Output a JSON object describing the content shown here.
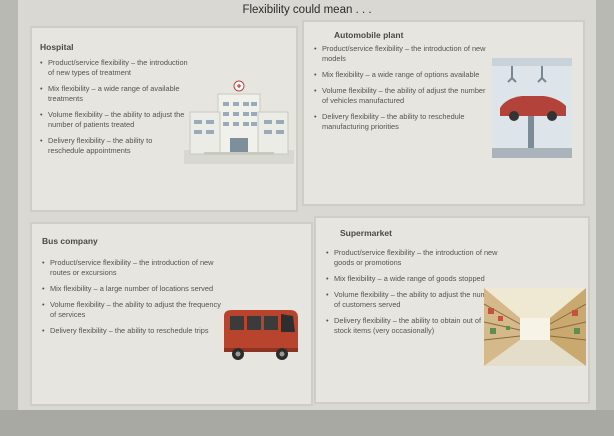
{
  "title": "Flexibility could mean . . .",
  "boxes": {
    "hospital": {
      "heading": "Hospital",
      "items": [
        "Product/service flexibility – the introduction of new types of treatment",
        "Mix flexibility – a wide range of available treatments",
        "Volume flexibility – the ability to adjust the number of patients treated",
        "Delivery flexibility – the ability to reschedule appointments"
      ],
      "illustration": "hospital-building-icon"
    },
    "automobile": {
      "heading": "Automobile plant",
      "items": [
        "Product/service flexibility – the introduction of new models",
        "Mix flexibility – a wide range of options available",
        "Volume flexibility – the ability of adjust the number of vehicles manufactured",
        "Delivery flexibility – the ability to reschedule manufacturing priorities"
      ],
      "illustration": "car-assembly-icon"
    },
    "bus": {
      "heading": "Bus company",
      "items": [
        "Product/service flexibility – the introduction of new routes or excursions",
        "Mix flexibility – a large number of locations served",
        "Volume flexibility – the ability to adjust the frequency of services",
        "Delivery flexibility – the ability to reschedule trips"
      ],
      "illustration": "bus-icon"
    },
    "supermarket": {
      "heading": "Supermarket",
      "items": [
        "Product/service flexibility – the introduction of new goods or promotions",
        "Mix flexibility – a wide range of goods stopped",
        "Volume flexibility – the ability to adjust the number of customers served",
        "Delivery flexibility – the ability to obtain out of stock items (very occasionally)"
      ],
      "illustration": "supermarket-aisle-icon"
    }
  },
  "colors": {
    "slide_bg": "#d9d8d2",
    "box_bg": "#e6e5df",
    "bus_red": "#b8442e",
    "car_red": "#b3423a"
  }
}
